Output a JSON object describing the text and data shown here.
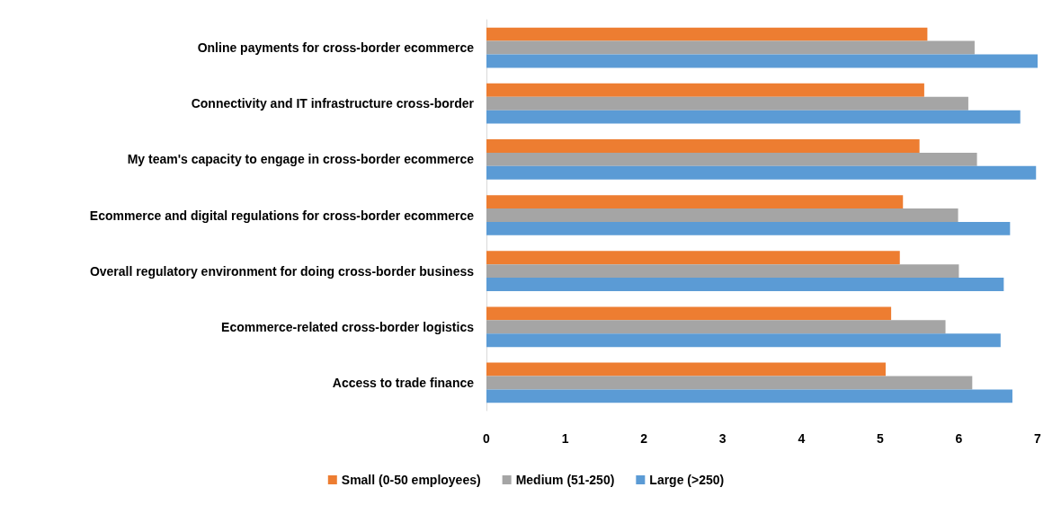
{
  "chart_data": {
    "type": "bar",
    "orientation": "horizontal",
    "categories": [
      "Online payments for cross-border ecommerce",
      "Connectivity and IT infrastructure cross-border",
      "My team's capacity to engage in cross-border ecommerce",
      "Ecommerce and digital regulations for cross-border ecommerce",
      "Overall regulatory environment for doing cross-border business",
      "Ecommerce-related cross-border logistics",
      "Access to trade finance"
    ],
    "series": [
      {
        "name": "Small (0-50 employees)",
        "color": "#ed7d31",
        "values": [
          5.6,
          5.56,
          5.5,
          5.29,
          5.25,
          5.14,
          5.07
        ]
      },
      {
        "name": "Medium (51-250)",
        "color": "#a5a5a5",
        "values": [
          6.2,
          6.12,
          6.23,
          5.99,
          6.0,
          5.83,
          6.17
        ]
      },
      {
        "name": "Large (>250)",
        "color": "#5b9bd5",
        "values": [
          7.0,
          6.78,
          6.98,
          6.65,
          6.57,
          6.53,
          6.68
        ]
      }
    ],
    "xlim": [
      0,
      7
    ],
    "xticks": [
      0,
      1,
      2,
      3,
      4,
      5,
      6,
      7
    ],
    "grid": false,
    "legend": "bottom"
  }
}
